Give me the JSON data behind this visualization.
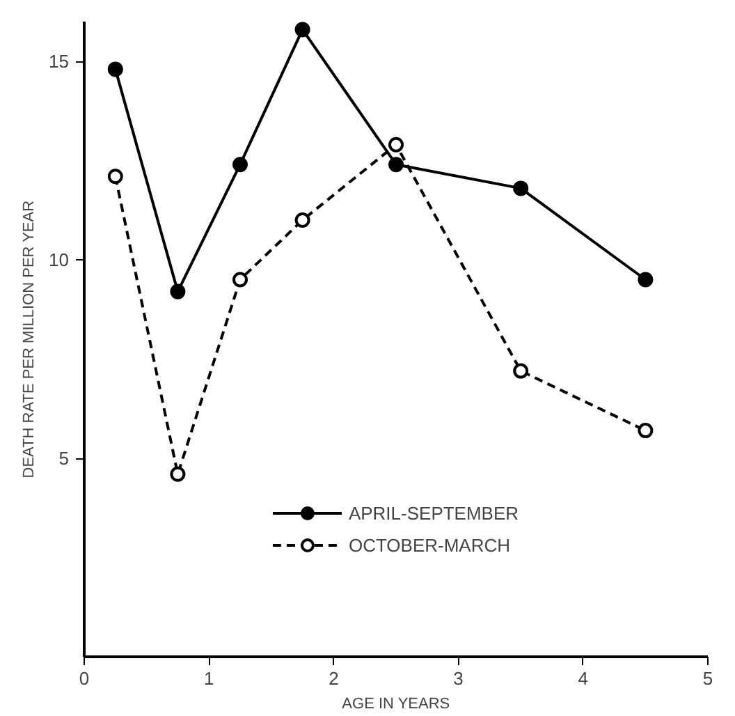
{
  "chart_data": {
    "type": "line",
    "xlabel": "AGE IN YEARS",
    "ylabel": "DEATH RATE PER MILLION PER YEAR",
    "x": [
      0.25,
      0.75,
      1.25,
      1.75,
      2.5,
      3.5,
      4.5
    ],
    "series": [
      {
        "name": "APRIL-SEPTEMBER",
        "color": "#000000",
        "line_style": "solid",
        "values": [
          14.8,
          9.2,
          12.4,
          15.8,
          12.4,
          11.8,
          9.5
        ]
      },
      {
        "name": "OCTOBER-MARCH",
        "color": "#000000",
        "line_style": "dashed",
        "values": [
          12.1,
          4.6,
          9.5,
          11.0,
          12.9,
          7.2,
          5.7
        ]
      }
    ],
    "xlim": [
      0,
      5
    ],
    "ylim": [
      0,
      16
    ],
    "xticks": [
      0,
      1,
      2,
      3,
      4,
      5
    ],
    "yticks": [
      5,
      10,
      15
    ],
    "marker": "circle",
    "grid": false,
    "legend": "bottom"
  }
}
